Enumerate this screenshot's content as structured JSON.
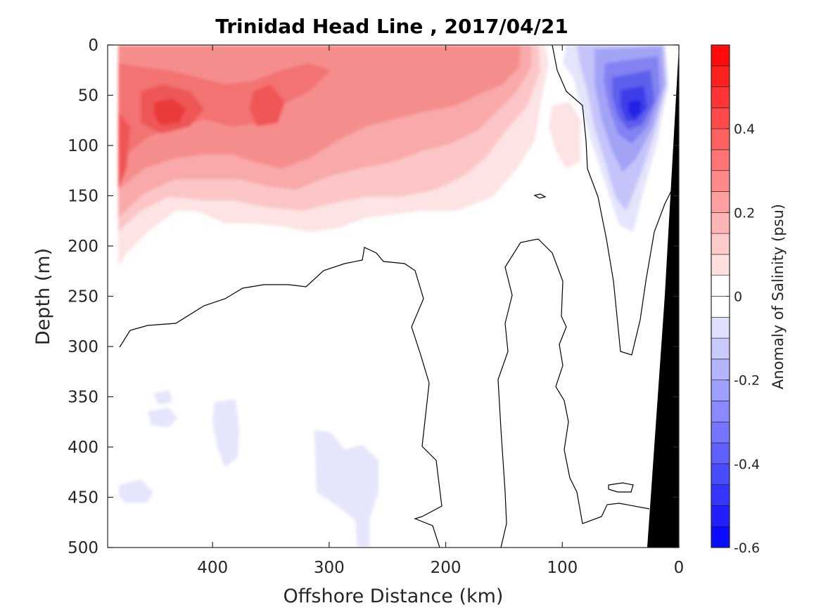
{
  "chart_data": {
    "type": "contour",
    "title": "Trinidad Head Line , 2017/04/21",
    "xlabel": "Offshore Distance (km)",
    "ylabel": "Depth (m)",
    "xlim": [
      490,
      0
    ],
    "ylim": [
      0,
      500
    ],
    "x_reversed": true,
    "y_reversed": true,
    "x_ticks": [
      400,
      300,
      200,
      100,
      0
    ],
    "y_ticks": [
      0,
      50,
      100,
      150,
      200,
      250,
      300,
      350,
      400,
      450,
      500
    ],
    "colorbar": {
      "label": "Anomaly of Salinity (psu)",
      "range": [
        -0.6,
        0.6
      ],
      "levels_step": 0.05,
      "ticks": [
        0.4,
        0.2,
        0,
        -0.2,
        -0.4,
        -0.6
      ],
      "high_color": "#ff0000",
      "low_color": "#0000ff",
      "zero_color": "#ffffff"
    },
    "regions": [
      {
        "sign": "positive",
        "x_range": [
          480,
          130
        ],
        "depth_range": [
          0,
          230
        ],
        "max_anomaly": 0.4,
        "peak_at": [
          435,
          65
        ]
      },
      {
        "sign": "negative",
        "x_range": [
          115,
          10
        ],
        "depth_range": [
          0,
          190
        ],
        "min_anomaly": -0.45,
        "peak_at": [
          40,
          70
        ]
      },
      {
        "sign": "negative",
        "x_range": [
          455,
          270
        ],
        "depth_range": [
          345,
          500
        ],
        "min_anomaly": -0.05
      }
    ],
    "bathymetry_color": "#000000"
  }
}
